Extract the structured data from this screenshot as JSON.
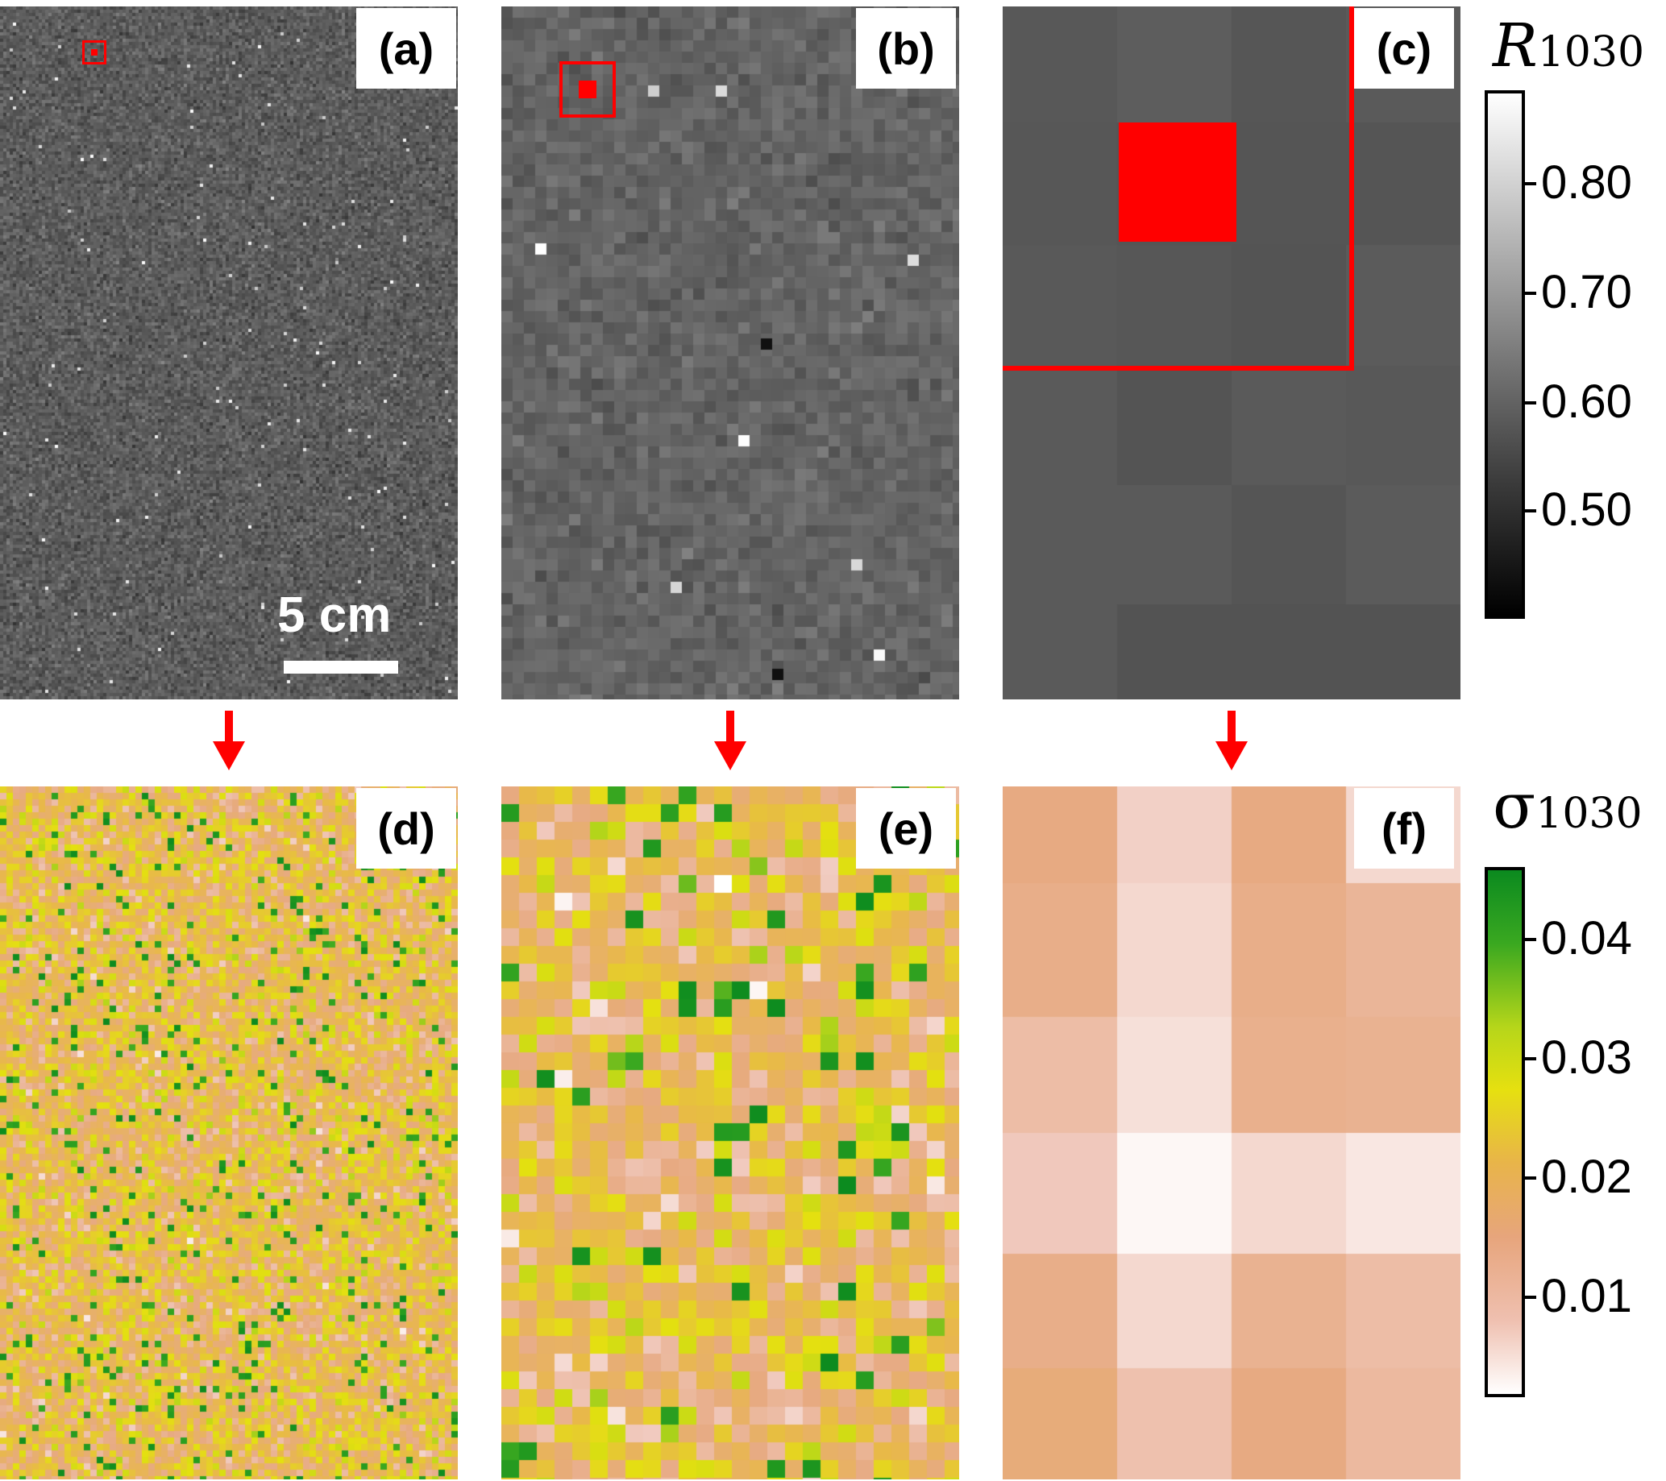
{
  "panels": {
    "a": {
      "label": "(a)"
    },
    "b": {
      "label": "(b)"
    },
    "c": {
      "label": "(c)"
    },
    "d": {
      "label": "(d)"
    },
    "e": {
      "label": "(e)"
    },
    "f": {
      "label": "(f)"
    }
  },
  "scale_bar": {
    "text": "5 cm"
  },
  "colorbar_top": {
    "title_main": "R",
    "title_sub": "1030",
    "ticks": [
      "0.80",
      "0.70",
      "0.60",
      "0.50"
    ],
    "colormap": "gray"
  },
  "colorbar_bottom": {
    "title_main": "σ",
    "title_sub": "1030",
    "ticks": [
      "0.04",
      "0.03",
      "0.02",
      "0.01"
    ],
    "colormap": "white-tan-yellow-green"
  },
  "colors": {
    "highlight": "#ff0000",
    "background": "#ffffff"
  }
}
